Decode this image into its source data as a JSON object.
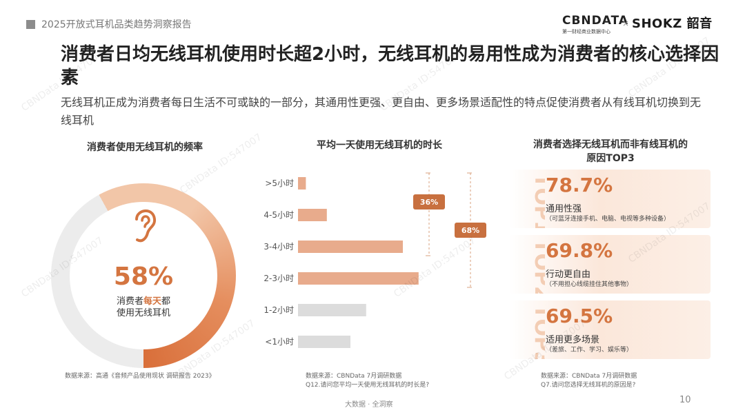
{
  "header": {
    "report_title": "2025开放式耳机品类趋势洞察报告",
    "logo_cbn": "CBNDATA",
    "logo_cbn_sub": "第一财经商业数据中心",
    "logo_x": "×",
    "logo_shokz": "SHOKZ 韶音"
  },
  "main": {
    "title": "消费者日均无线耳机使用时长超2小时，无线耳机的易用性成为消费者的核心选择因素",
    "subtitle": "无线耳机正成为消费者每日生活不可或缺的一部分，其通用性更强、更自由、更多场景适配性的特点促使消费者从有线耳机切换到无线耳机"
  },
  "left_panel": {
    "title": "消费者使用无线耳机的频率",
    "percent": "58%",
    "caption_pre": "消费者",
    "caption_highlight": "每天",
    "caption_post": "都",
    "caption_line2": "使用无线耳机",
    "source": "数据来源：高通《音频产品使用现状 调研报告 2023》"
  },
  "middle_panel": {
    "title": "平均一天使用无线耳机的时长",
    "source_line1": "数据来源：CBNData 7月调研数据",
    "source_line2": "Q12.请问您平均一天使用无线耳机的时长是?"
  },
  "chart_data": {
    "type": "bar",
    "orientation": "horizontal",
    "categories": [
      ">5小时",
      "4-5小时",
      "3-4小时",
      "2-3小时",
      "1-2小时",
      "<1小时"
    ],
    "values": [
      3,
      11,
      40,
      46,
      26,
      20
    ],
    "highlighted": [
      true,
      true,
      true,
      true,
      false,
      false
    ],
    "annotations": [
      {
        "label": "36%",
        "span": [
          ">5小时",
          "3-4小时"
        ]
      },
      {
        "label": "68%",
        "span": [
          ">5小时",
          "2-3小时"
        ]
      }
    ],
    "colors": {
      "highlight": "#e8ab8c",
      "normal": "#dcdcdc",
      "annotation": "#c8703f"
    }
  },
  "right_panel": {
    "title_line1": "消费者选择无线耳机而非有线耳机的",
    "title_line2": "原因TOP3",
    "items": [
      {
        "rank": "TOP1",
        "pct": "78.7%",
        "label": "通用性强",
        "note": "（可蓝牙连接手机、电脑、电视等多种设备）"
      },
      {
        "rank": "TOP2",
        "pct": "69.8%",
        "label": "行动更自由",
        "note": "（不用担心线缆挂住其他事物）"
      },
      {
        "rank": "TOP3",
        "pct": "69.5%",
        "label": "适用更多场景",
        "note": "（差旅、工作、学习、娱乐等）"
      }
    ],
    "source_line1": "数据来源：CBNData 7月调研数据",
    "source_line2": "Q7.请问您选择无线耳机的原因是?"
  },
  "footer": {
    "center": "大数据 · 全洞察",
    "page": "10"
  },
  "watermark_text": "CBNData ID:547007",
  "colors": {
    "accent": "#d47540",
    "accent_light": "#e8ab8c",
    "gray": "#dcdcdc"
  }
}
